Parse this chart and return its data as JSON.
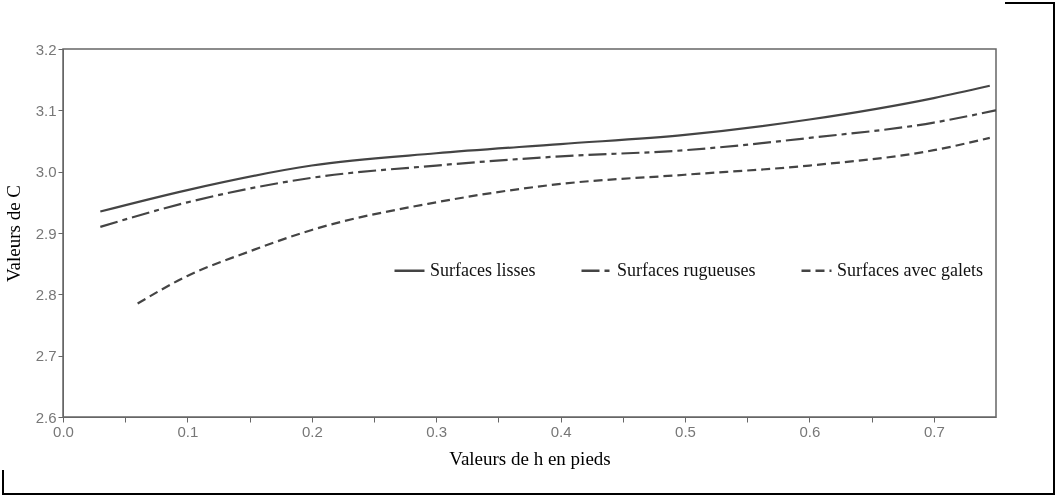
{
  "chart_data": {
    "type": "line",
    "xlabel": "Valeurs de h en pieds",
    "ylabel": "Valeurs de C",
    "xlim": [
      0,
      0.75
    ],
    "ylim": [
      2.6,
      3.2
    ],
    "xticks": [
      {
        "value": 0,
        "label": "0.0"
      },
      {
        "value": 0.05,
        "label": null
      },
      0.1,
      {
        "value": 0.15,
        "label": null
      },
      0.2,
      {
        "value": 0.25,
        "label": null
      },
      0.3,
      {
        "value": 0.35,
        "label": null
      },
      0.4,
      {
        "value": 0.45,
        "label": null
      },
      0.5,
      {
        "value": 0.55,
        "label": null
      },
      0.6,
      {
        "value": 0.65,
        "label": null
      },
      0.7
    ],
    "yticks": [
      2.6,
      2.7,
      2.8,
      2.9,
      {
        "value": 3,
        "label": "3.0"
      },
      3.1,
      3.2
    ],
    "grid": false,
    "legend": "bottom",
    "marker": "none",
    "series": [
      {
        "name": "Surfaces lisses",
        "color": "#444444",
        "line_style": "solid",
        "x": [
          0.03,
          0.1,
          0.2,
          0.3,
          0.4,
          0.5,
          0.6,
          0.7,
          0.745
        ],
        "values": [
          2.935,
          2.97,
          3.01,
          3.03,
          3.045,
          3.06,
          3.085,
          3.12,
          3.14
        ]
      },
      {
        "name": "Surfaces rugueuses",
        "color": "#444444",
        "line_style": "dashdot",
        "x": [
          0.03,
          0.1,
          0.2,
          0.3,
          0.4,
          0.5,
          0.6,
          0.7,
          0.75
        ],
        "values": [
          2.91,
          2.95,
          2.99,
          3.01,
          3.025,
          3.035,
          3.055,
          3.08,
          3.1
        ]
      },
      {
        "name": "Surfaces avec galets",
        "color": "#444444",
        "line_style": "dashed",
        "x": [
          0.06,
          0.1,
          0.15,
          0.2,
          0.3,
          0.4,
          0.5,
          0.6,
          0.7,
          0.745
        ],
        "values": [
          2.785,
          2.83,
          2.87,
          2.905,
          2.95,
          2.98,
          2.995,
          3.01,
          3.035,
          3.055
        ]
      }
    ]
  }
}
